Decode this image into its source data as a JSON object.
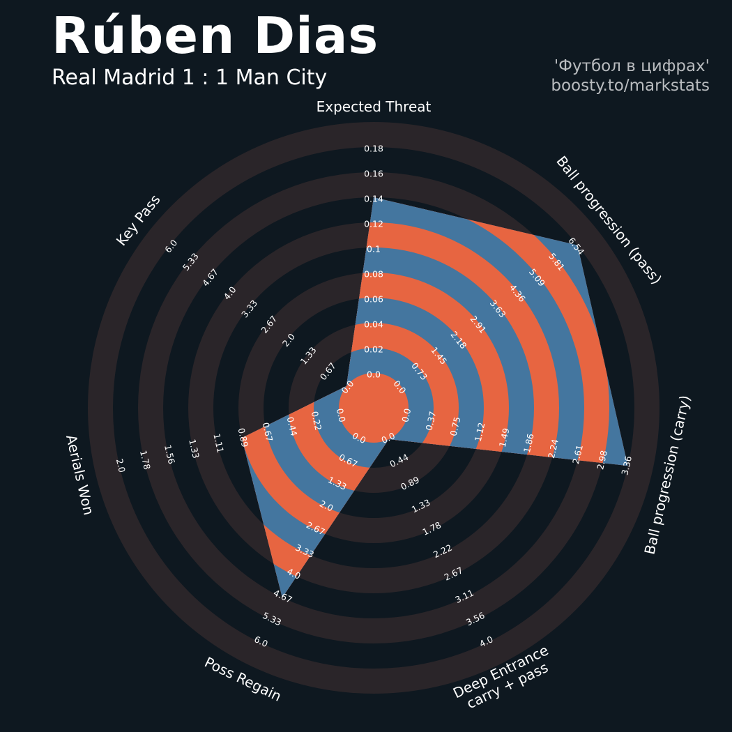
{
  "header": {
    "player_name": "Rúben Dias",
    "match": "Real Madrid 1 : 1 Man City",
    "credit_line1": "'Футбол в цифрах'",
    "credit_line2": "boosty.to/markstats"
  },
  "colors": {
    "background": "#0e1820",
    "ring": "#2a2529",
    "fill_blue": "#44769f",
    "fill_orange": "#e76541",
    "text": "#ffffff"
  },
  "chart_data": {
    "type": "radar",
    "title": "",
    "params": [
      {
        "label": [
          "Expected Threat"
        ],
        "ticks": [
          "0.0",
          "0.02",
          "0.04",
          "0.06",
          "0.08",
          "0.1",
          "0.12",
          "0.14",
          "0.16",
          "0.18"
        ],
        "value": 0.14
      },
      {
        "label": [
          "Ball progression (pass)"
        ],
        "ticks": [
          "0.0",
          "0.73",
          "1.45",
          "2.18",
          "2.91",
          "3.63",
          "4.36",
          "5.09",
          "5.81",
          "6.54"
        ],
        "value": 6.54
      },
      {
        "label": [
          "Ball progression (carry)"
        ],
        "ticks": [
          "0.0",
          "0.37",
          "0.75",
          "1.12",
          "1.49",
          "1.86",
          "2.24",
          "2.61",
          "2.98",
          "3.36"
        ],
        "value": 3.36
      },
      {
        "label": [
          "Deep Entrance",
          "carry + pass"
        ],
        "ticks": [
          "0.0",
          "0.44",
          "0.89",
          "1.33",
          "1.78",
          "2.22",
          "2.67",
          "3.11",
          "3.56",
          "4.0"
        ],
        "value": 0
      },
      {
        "label": [
          "Poss Regain"
        ],
        "ticks": [
          "0.0",
          "0.67",
          "1.33",
          "2.0",
          "2.67",
          "3.33",
          "4.0",
          "4.67",
          "5.33",
          "6.0"
        ],
        "value": 4.67
      },
      {
        "label": [
          "Aerials Won"
        ],
        "ticks": [
          "0.0",
          "0.22",
          "0.44",
          "0.67",
          "0.89",
          "1.11",
          "1.33",
          "1.56",
          "1.78",
          "2.0"
        ],
        "value": 0.89
      },
      {
        "label": [
          "Key Pass"
        ],
        "ticks": [
          "0.0",
          "0.67",
          "1.33",
          "2.0",
          "2.67",
          "3.33",
          "4.0",
          "4.67",
          "5.33",
          "6.0"
        ],
        "value": 0
      }
    ]
  }
}
